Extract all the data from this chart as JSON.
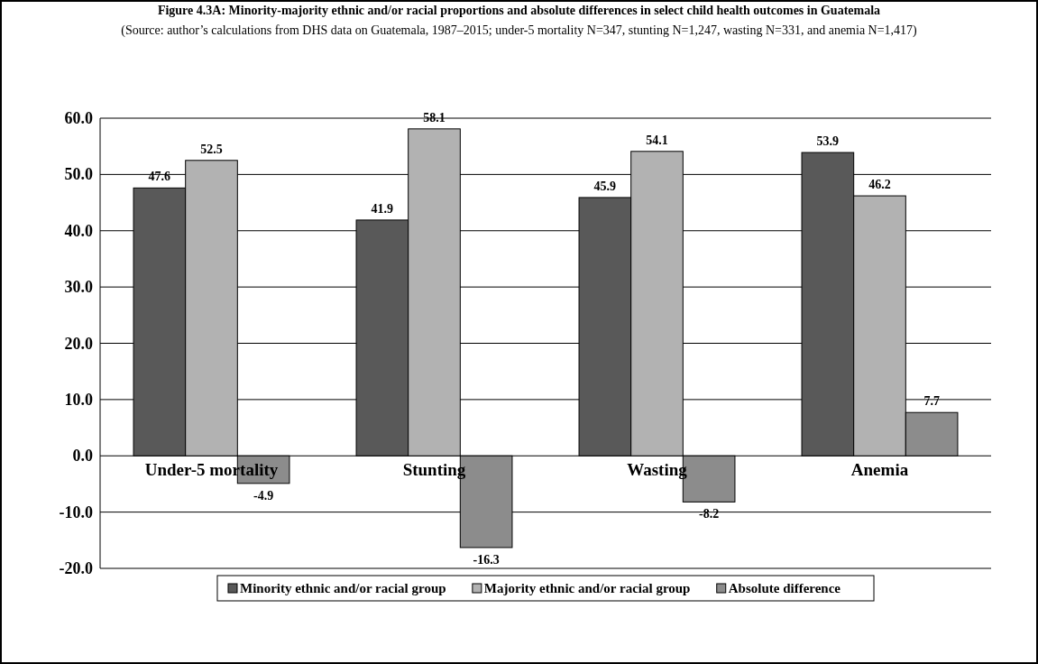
{
  "chart_data": {
    "type": "bar",
    "title": "Figure 4.3A: Minority-majority ethnic and/or racial proportions and absolute differences in select child health outcomes in Guatemala",
    "subtitle": "(Source: author’s calculations from DHS data on Guatemala, 1987–2015; under-5 mortality N=347, stunting N=1,247, wasting N=331, and anemia N=1,417)",
    "categories": [
      "Under-5 mortality",
      "Stunting",
      "Wasting",
      "Anemia"
    ],
    "series": [
      {
        "name": "Minority ethnic and/or racial group",
        "color": "#595959",
        "values": [
          47.6,
          41.9,
          45.9,
          53.9
        ]
      },
      {
        "name": "Majority ethnic and/or racial group",
        "color": "#b2b2b2",
        "values": [
          52.5,
          58.1,
          54.1,
          46.2
        ]
      },
      {
        "name": "Absolute difference",
        "color": "#8c8c8c",
        "values": [
          -4.9,
          -16.3,
          -8.2,
          7.7
        ]
      }
    ],
    "ylim": [
      -20,
      60
    ],
    "yticks": [
      {
        "value": -20,
        "label": "-20.0"
      },
      {
        "value": -10,
        "label": "-10.0"
      },
      {
        "value": 0,
        "label": "0.0"
      },
      {
        "value": 10,
        "label": "10.0"
      },
      {
        "value": 20,
        "label": "20.0"
      },
      {
        "value": 30,
        "label": "30.0"
      },
      {
        "value": 40,
        "label": "40.0"
      },
      {
        "value": 50,
        "label": "50.0"
      },
      {
        "value": 60,
        "label": "60.0"
      }
    ],
    "grid": "y",
    "legend": "bottom",
    "data_labels": true
  }
}
